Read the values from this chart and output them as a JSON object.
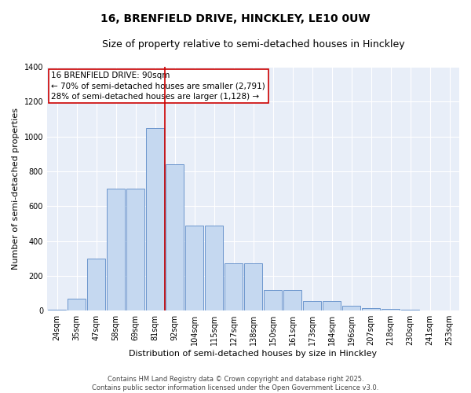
{
  "title1": "16, BRENFIELD DRIVE, HINCKLEY, LE10 0UW",
  "title2": "Size of property relative to semi-detached houses in Hinckley",
  "xlabel": "Distribution of semi-detached houses by size in Hinckley",
  "ylabel": "Number of semi-detached properties",
  "annotation_title": "16 BRENFIELD DRIVE: 90sqm",
  "annotation_line1": "← 70% of semi-detached houses are smaller (2,791)",
  "annotation_line2": "28% of semi-detached houses are larger (1,128) →",
  "footer1": "Contains HM Land Registry data © Crown copyright and database right 2025.",
  "footer2": "Contains public sector information licensed under the Open Government Licence v3.0.",
  "categories": [
    "24sqm",
    "35sqm",
    "47sqm",
    "58sqm",
    "69sqm",
    "81sqm",
    "92sqm",
    "104sqm",
    "115sqm",
    "127sqm",
    "138sqm",
    "150sqm",
    "161sqm",
    "173sqm",
    "184sqm",
    "196sqm",
    "207sqm",
    "218sqm",
    "230sqm",
    "241sqm",
    "253sqm"
  ],
  "bar_values": [
    5,
    70,
    300,
    700,
    700,
    1050,
    840,
    490,
    490,
    270,
    270,
    120,
    120,
    55,
    55,
    30,
    15,
    10,
    5,
    3,
    2
  ],
  "bar_color": "#c5d8f0",
  "bar_edge_color": "#5b8ac7",
  "vline_color": "#cc0000",
  "vline_pos": 6.5,
  "ylim": [
    0,
    1400
  ],
  "yticks": [
    0,
    200,
    400,
    600,
    800,
    1000,
    1200,
    1400
  ],
  "annotation_box_color": "#cc0000",
  "bg_color": "#e8eef8",
  "grid_color": "#ffffff",
  "title_fontsize": 10,
  "subtitle_fontsize": 9,
  "tick_fontsize": 7,
  "ylabel_fontsize": 8,
  "xlabel_fontsize": 8,
  "annotation_fontsize": 7.5,
  "footer_fontsize": 6
}
